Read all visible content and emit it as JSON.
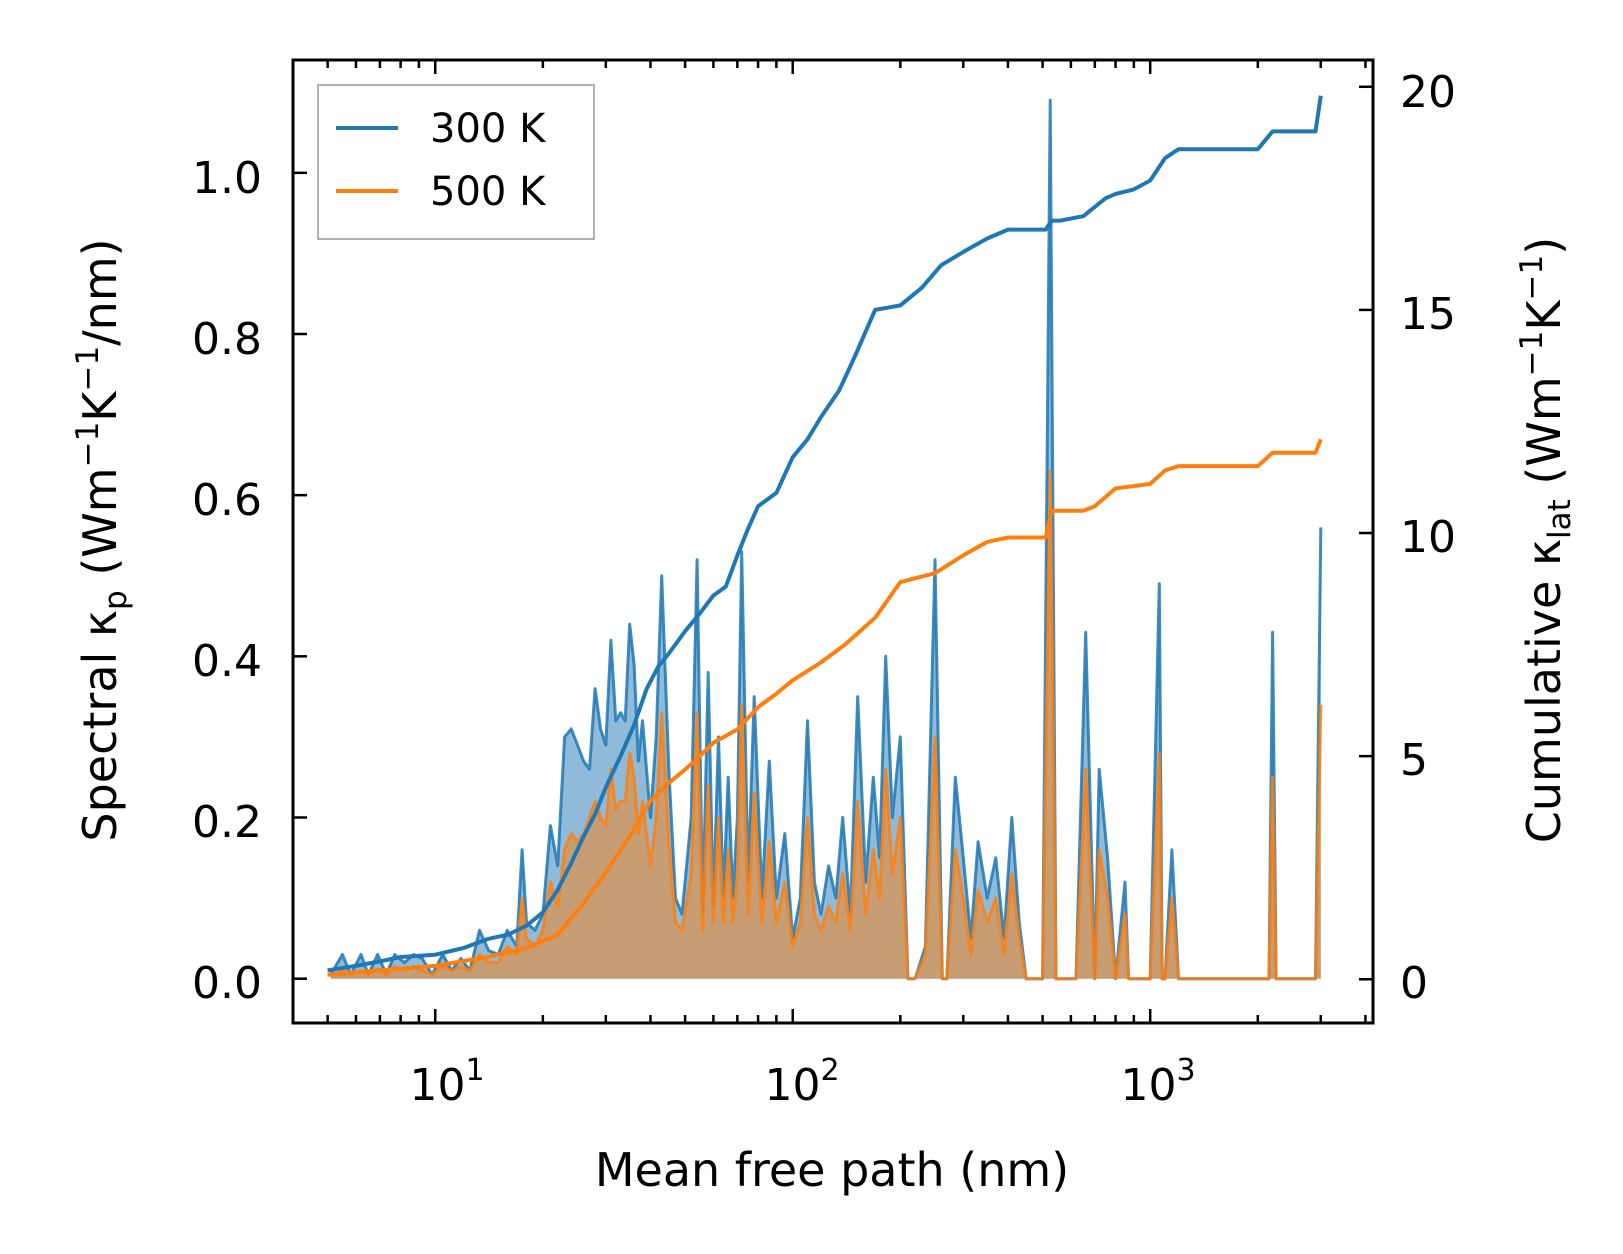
{
  "chart_data": {
    "type": "line",
    "xlabel": "Mean free path (nm)",
    "xscale": "log",
    "xlim": [
      4.0,
      4200
    ],
    "x_tick_labels": [
      "10",
      "10",
      "10"
    ],
    "x_tick_exponents": [
      "1",
      "2",
      "3"
    ],
    "ylabel_left": {
      "prefix": "Spectral κ",
      "sub": "p",
      "unit_a": " (Wm",
      "sup1": "−1",
      "unit_b": "K",
      "sup2": "−1",
      "unit_c": "/nm)"
    },
    "ylabel_right": {
      "prefix": "Cumulative κ",
      "sub": "lat",
      "unit_a": " (Wm",
      "sup1": "−1",
      "unit_b": "K",
      "sup2": "−1",
      "unit_c": ")"
    },
    "ylim_left": [
      -0.055,
      1.14
    ],
    "ylim_right": [
      -0.98,
      20.6
    ],
    "left_ticks": [
      0.0,
      0.2,
      0.4,
      0.6,
      0.8,
      1.0
    ],
    "left_tick_labels": [
      "0.0",
      "0.2",
      "0.4",
      "0.6",
      "0.8",
      "1.0"
    ],
    "right_ticks": [
      0,
      5,
      10,
      15,
      20
    ],
    "right_tick_labels": [
      "0",
      "5",
      "10",
      "15",
      "20"
    ],
    "legend_position": "top-left",
    "series": [
      {
        "name": "300 K",
        "color": "#1f77b4",
        "fill_color": "#1f77b4",
        "spectral": {
          "x": [
            5.1,
            5.5,
            5.8,
            6.2,
            6.5,
            6.9,
            7.3,
            7.7,
            8.2,
            8.7,
            9.2,
            9.8,
            10.5,
            11.1,
            11.8,
            12.5,
            13.3,
            14.1,
            15.0,
            15.9,
            16.9,
            17.5,
            18.0,
            19.0,
            20.0,
            21.0,
            22.0,
            23.0,
            24.0,
            25.0,
            26.0,
            27.0,
            28.0,
            29.0,
            30.0,
            31.0,
            32.0,
            33.0,
            34.0,
            35.0,
            36.0,
            37.0,
            38.0,
            40.0,
            41.5,
            43.0,
            45.0,
            47.0,
            49.0,
            52.0,
            54.0,
            56.0,
            58.0,
            60.0,
            62.0,
            64.0,
            66.0,
            68.0,
            70.0,
            72.0,
            75.0,
            78.0,
            82.0,
            86.0,
            90.0,
            95.0,
            100.0,
            105.0,
            110.0,
            115.0,
            120.0,
            126.0,
            132.0,
            138.0,
            145.0,
            152.0,
            160.0,
            168.0,
            175.0,
            182.0,
            190.0,
            200.0,
            210.0,
            220.0,
            235.0,
            250.0,
            262.0,
            270.0,
            285.0,
            300.0,
            315.0,
            330.0,
            350.0,
            370.0,
            390.0,
            410.0,
            430.0,
            450.0,
            500.0,
            525.0,
            545.0,
            560.0,
            620.0,
            660.0,
            700.0,
            720.0,
            760.0,
            800.0,
            850.0,
            870.0,
            900.0,
            1000.0,
            1060.0,
            1080.0,
            1100.0,
            1150.0,
            1200.0,
            1250.0,
            2100.0,
            2150.0,
            2200.0,
            2250.0,
            2300.0,
            2800.0,
            2900.0,
            3000.0
          ],
          "y": [
            0.005,
            0.03,
            0.005,
            0.03,
            0.005,
            0.03,
            0.005,
            0.03,
            0.02,
            0.03,
            0.025,
            0.005,
            0.03,
            0.01,
            0.025,
            0.01,
            0.06,
            0.035,
            0.03,
            0.06,
            0.04,
            0.16,
            0.07,
            0.06,
            0.08,
            0.19,
            0.14,
            0.3,
            0.31,
            0.29,
            0.27,
            0.26,
            0.36,
            0.31,
            0.29,
            0.42,
            0.32,
            0.33,
            0.32,
            0.44,
            0.39,
            0.27,
            0.32,
            0.2,
            0.3,
            0.5,
            0.26,
            0.1,
            0.08,
            0.2,
            0.52,
            0.08,
            0.38,
            0.09,
            0.3,
            0.1,
            0.25,
            0.1,
            0.2,
            0.53,
            0.12,
            0.35,
            0.1,
            0.27,
            0.1,
            0.18,
            0.05,
            0.1,
            0.32,
            0.12,
            0.08,
            0.14,
            0.1,
            0.2,
            0.08,
            0.35,
            0.12,
            0.25,
            0.15,
            0.4,
            0.2,
            0.3,
            0.0,
            0.0,
            0.04,
            0.52,
            0.0,
            0.0,
            0.25,
            0.15,
            0.05,
            0.17,
            0.1,
            0.15,
            0.05,
            0.2,
            0.07,
            0.0,
            0.0,
            1.09,
            0.0,
            0.0,
            0.0,
            0.43,
            0.0,
            0.26,
            0.15,
            0.0,
            0.12,
            0.0,
            0.0,
            0.0,
            0.49,
            0.0,
            0.0,
            0.16,
            0.0,
            0.0,
            0.0,
            0.0,
            0.43,
            0.0,
            0.0,
            0.0,
            0.0,
            0.56
          ]
        },
        "cumulative": {
          "x": [
            5.0,
            6.0,
            7.0,
            8.0,
            10.0,
            12.0,
            14.0,
            16.0,
            18.0,
            20.0,
            22.0,
            24.0,
            26.0,
            28.0,
            30.0,
            33.0,
            36.0,
            39.0,
            42.0,
            45.0,
            50.0,
            55.0,
            60.0,
            65.0,
            70.0,
            75.0,
            80.0,
            90.0,
            100.0,
            110.0,
            120.0,
            135.0,
            150.0,
            170.0,
            200.0,
            230.0,
            260.0,
            300.0,
            350.0,
            400.0,
            450.0,
            510.0,
            530.0,
            560.0,
            650.0,
            750.0,
            800.0,
            900.0,
            1000.0,
            1100.0,
            1200.0,
            2000.0,
            2200.0,
            2300.0,
            2900.0,
            3000.0
          ],
          "y": [
            0.2,
            0.3,
            0.4,
            0.5,
            0.55,
            0.7,
            0.9,
            1.0,
            1.2,
            1.5,
            2.0,
            2.6,
            3.2,
            3.7,
            4.3,
            5.0,
            5.7,
            6.5,
            7.0,
            7.3,
            7.8,
            8.2,
            8.6,
            8.8,
            9.5,
            10.1,
            10.6,
            10.9,
            11.7,
            12.1,
            12.6,
            13.2,
            14.0,
            15.0,
            15.1,
            15.5,
            16.0,
            16.3,
            16.6,
            16.8,
            16.8,
            16.8,
            17.0,
            17.0,
            17.1,
            17.5,
            17.6,
            17.7,
            17.9,
            18.4,
            18.6,
            18.6,
            19.0,
            19.0,
            19.0,
            19.8
          ]
        }
      },
      {
        "name": "500 K",
        "color": "#ff7f0e",
        "fill_color": "#ff7f0e",
        "spectral": {
          "x": [
            5.1,
            5.5,
            5.8,
            6.2,
            6.5,
            6.9,
            7.3,
            7.7,
            8.2,
            8.7,
            9.2,
            9.8,
            10.5,
            11.1,
            11.8,
            12.5,
            13.3,
            14.1,
            15.0,
            15.9,
            16.9,
            17.5,
            18.0,
            19.0,
            20.0,
            21.0,
            22.0,
            23.0,
            24.0,
            25.0,
            26.0,
            27.0,
            28.0,
            29.0,
            30.0,
            31.0,
            32.0,
            33.0,
            34.0,
            35.0,
            36.0,
            37.0,
            38.0,
            40.0,
            41.5,
            43.0,
            45.0,
            47.0,
            49.0,
            52.0,
            54.0,
            56.0,
            58.0,
            60.0,
            62.0,
            64.0,
            66.0,
            68.0,
            70.0,
            72.0,
            75.0,
            78.0,
            82.0,
            86.0,
            90.0,
            95.0,
            100.0,
            105.0,
            110.0,
            115.0,
            120.0,
            126.0,
            132.0,
            138.0,
            145.0,
            152.0,
            160.0,
            168.0,
            175.0,
            182.0,
            190.0,
            200.0,
            210.0,
            220.0,
            235.0,
            250.0,
            262.0,
            270.0,
            285.0,
            300.0,
            315.0,
            330.0,
            350.0,
            370.0,
            390.0,
            410.0,
            430.0,
            450.0,
            500.0,
            525.0,
            545.0,
            560.0,
            620.0,
            660.0,
            700.0,
            720.0,
            760.0,
            800.0,
            850.0,
            870.0,
            900.0,
            1000.0,
            1060.0,
            1080.0,
            1100.0,
            1150.0,
            1200.0,
            1250.0,
            2100.0,
            2150.0,
            2200.0,
            2250.0,
            2300.0,
            2800.0,
            2900.0,
            3000.0
          ],
          "y": [
            0.003,
            0.01,
            0.005,
            0.01,
            0.005,
            0.012,
            0.005,
            0.015,
            0.01,
            0.015,
            0.01,
            0.005,
            0.015,
            0.01,
            0.015,
            0.01,
            0.03,
            0.02,
            0.02,
            0.04,
            0.03,
            0.1,
            0.05,
            0.04,
            0.06,
            0.12,
            0.09,
            0.16,
            0.18,
            0.17,
            0.18,
            0.2,
            0.22,
            0.2,
            0.19,
            0.26,
            0.21,
            0.22,
            0.22,
            0.28,
            0.25,
            0.18,
            0.22,
            0.14,
            0.2,
            0.33,
            0.17,
            0.07,
            0.06,
            0.13,
            0.33,
            0.06,
            0.24,
            0.07,
            0.2,
            0.07,
            0.16,
            0.07,
            0.13,
            0.34,
            0.08,
            0.23,
            0.07,
            0.17,
            0.07,
            0.12,
            0.04,
            0.07,
            0.2,
            0.08,
            0.06,
            0.09,
            0.07,
            0.13,
            0.06,
            0.22,
            0.08,
            0.16,
            0.1,
            0.26,
            0.13,
            0.2,
            0.0,
            0.0,
            0.03,
            0.3,
            0.0,
            0.0,
            0.16,
            0.1,
            0.03,
            0.11,
            0.07,
            0.1,
            0.03,
            0.13,
            0.05,
            0.0,
            0.0,
            0.63,
            0.0,
            0.0,
            0.0,
            0.26,
            0.0,
            0.16,
            0.1,
            0.0,
            0.08,
            0.0,
            0.0,
            0.0,
            0.28,
            0.0,
            0.0,
            0.1,
            0.0,
            0.0,
            0.0,
            0.0,
            0.25,
            0.0,
            0.0,
            0.0,
            0.0,
            0.34
          ]
        },
        "cumulative": {
          "x": [
            5.0,
            7.0,
            10.0,
            14.0,
            18.0,
            22.0,
            26.0,
            30.0,
            35.0,
            40.0,
            45.0,
            50.0,
            55.0,
            60.0,
            70.0,
            80.0,
            90.0,
            100.0,
            120.0,
            140.0,
            170.0,
            200.0,
            250.0,
            300.0,
            350.0,
            400.0,
            450.0,
            510.0,
            530.0,
            650.0,
            700.0,
            800.0,
            1000.0,
            1100.0,
            1200.0,
            2000.0,
            2200.0,
            2300.0,
            2900.0,
            3000.0
          ],
          "y": [
            0.1,
            0.2,
            0.3,
            0.5,
            0.7,
            1.0,
            1.7,
            2.4,
            3.2,
            4.0,
            4.4,
            4.7,
            5.0,
            5.3,
            5.6,
            6.1,
            6.4,
            6.7,
            7.1,
            7.5,
            8.1,
            8.9,
            9.1,
            9.5,
            9.8,
            9.9,
            9.9,
            9.9,
            10.5,
            10.5,
            10.6,
            11.0,
            11.1,
            11.4,
            11.5,
            11.5,
            11.8,
            11.8,
            11.8,
            12.1
          ]
        }
      }
    ]
  }
}
